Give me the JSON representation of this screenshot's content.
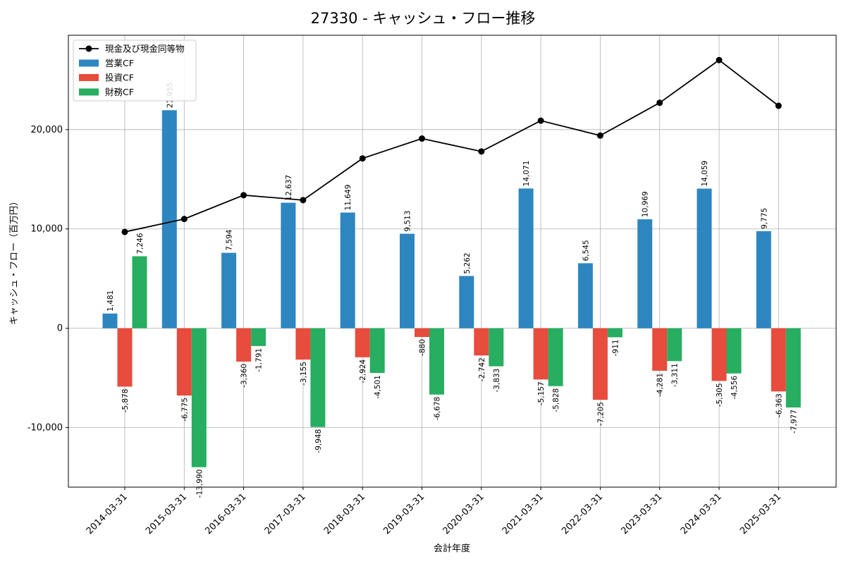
{
  "chart_data": {
    "type": "bar",
    "title": "27330 - キャッシュ・フロー推移",
    "xlabel": "会計年度",
    "ylabel": "キャッシュ・フロー（百万円）",
    "ylim": [
      -16000,
      29500
    ],
    "yticks": [
      -10000,
      0,
      10000,
      20000
    ],
    "ytick_labels": [
      "-10,000",
      "0",
      "10,000",
      "20,000"
    ],
    "grid": true,
    "legend_position": "top-left",
    "categories": [
      "2014-03-31",
      "2015-03-31",
      "2016-03-31",
      "2017-03-31",
      "2018-03-31",
      "2019-03-31",
      "2020-03-31",
      "2021-03-31",
      "2022-03-31",
      "2023-03-31",
      "2024-03-31",
      "2025-03-31"
    ],
    "series": [
      {
        "name": "営業CF",
        "kind": "bar",
        "color": "#2e86c1",
        "values": [
          1481,
          21955,
          7594,
          12637,
          11649,
          9513,
          5262,
          14071,
          6545,
          10969,
          14059,
          9775
        ],
        "labels": [
          "1,481",
          "21,955",
          "7,594",
          "12,637",
          "11,649",
          "9,513",
          "5,262",
          "14,071",
          "6,545",
          "10,969",
          "14,059",
          "9,775"
        ]
      },
      {
        "name": "投資CF",
        "kind": "bar",
        "color": "#e74c3c",
        "values": [
          -5878,
          -6775,
          -3360,
          -3155,
          -2924,
          -880,
          -2742,
          -5157,
          -7205,
          -4281,
          -5305,
          -6363
        ],
        "labels": [
          "-5,878",
          "-6,775",
          "-3,360",
          "-3,155",
          "-2,924",
          "-880",
          "-2,742",
          "-5,157",
          "-7,205",
          "-4,281",
          "-5,305",
          "-6,363"
        ]
      },
      {
        "name": "財務CF",
        "kind": "bar",
        "color": "#27ae60",
        "values": [
          7246,
          -13990,
          -1791,
          -9948,
          -4501,
          -6678,
          -3833,
          -5828,
          -911,
          -3311,
          -4556,
          -7977
        ],
        "labels": [
          "7,246",
          "-13,990",
          "-1,791",
          "-9,948",
          "-4,501",
          "-6,678",
          "-3,833",
          "-5,828",
          "-911",
          "-3,311",
          "-4,556",
          "-7,977"
        ]
      },
      {
        "name": "現金及び現金同等物",
        "kind": "line",
        "color": "#000000",
        "values": [
          9700,
          11000,
          13400,
          12900,
          17100,
          19100,
          17800,
          20900,
          19400,
          22700,
          27000,
          22400
        ]
      }
    ]
  }
}
